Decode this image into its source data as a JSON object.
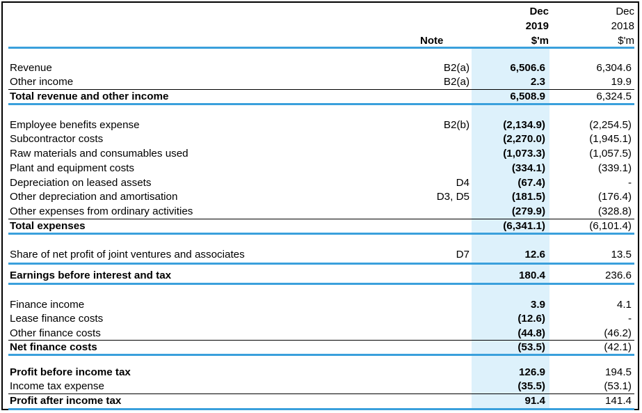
{
  "header": {
    "note": "Note",
    "col2019": [
      "Dec",
      "2019",
      "$'m"
    ],
    "col2018": [
      "Dec",
      "2018",
      "$'m"
    ]
  },
  "rows": [
    {
      "label": "Revenue",
      "note": "B2(a)",
      "v2019": "6,506.6",
      "v2018": "6,304.6"
    },
    {
      "label": "Other income",
      "note": "B2(a)",
      "v2019": "2.3",
      "v2018": "19.9"
    },
    {
      "label": "Total revenue and other income",
      "note": "",
      "v2019": "6,508.9",
      "v2018": "6,324.5"
    },
    {
      "label": "Employee benefits expense",
      "note": "B2(b)",
      "v2019": "(2,134.9)",
      "v2018": "(2,254.5)"
    },
    {
      "label": "Subcontractor costs",
      "note": "",
      "v2019": "(2,270.0)",
      "v2018": "(1,945.1)"
    },
    {
      "label": "Raw materials and consumables used",
      "note": "",
      "v2019": "(1,073.3)",
      "v2018": "(1,057.5)"
    },
    {
      "label": "Plant and equipment costs",
      "note": "",
      "v2019": "(334.1)",
      "v2018": "(339.1)"
    },
    {
      "label": "Depreciation on leased assets",
      "note": "D4",
      "v2019": "(67.4)",
      "v2018": "-"
    },
    {
      "label": "Other depreciation and amortisation",
      "note": "D3, D5",
      "v2019": "(181.5)",
      "v2018": "(176.4)"
    },
    {
      "label": "Other expenses from ordinary activities",
      "note": "",
      "v2019": "(279.9)",
      "v2018": "(328.8)"
    },
    {
      "label": "Total expenses",
      "note": "",
      "v2019": "(6,341.1)",
      "v2018": "(6,101.4)"
    },
    {
      "label": "Share of net profit of joint ventures and associates",
      "note": "D7",
      "v2019": "12.6",
      "v2018": "13.5"
    },
    {
      "label": "Earnings before interest and tax",
      "note": "",
      "v2019": "180.4",
      "v2018": "236.6"
    },
    {
      "label": "Finance income",
      "note": "",
      "v2019": "3.9",
      "v2018": "4.1"
    },
    {
      "label": "Lease finance costs",
      "note": "",
      "v2019": "(12.6)",
      "v2018": "-"
    },
    {
      "label": "Other finance costs",
      "note": "",
      "v2019": "(44.8)",
      "v2018": "(46.2)"
    },
    {
      "label": "Net finance costs",
      "note": "",
      "v2019": "(53.5)",
      "v2018": "(42.1)"
    },
    {
      "label": "Profit before income tax",
      "note": "",
      "v2019": "126.9",
      "v2018": "194.5"
    },
    {
      "label": "Income tax expense",
      "note": "",
      "v2019": "(35.5)",
      "v2018": "(53.1)"
    },
    {
      "label": "Profit after income tax",
      "note": "",
      "v2019": "91.4",
      "v2018": "141.4"
    }
  ]
}
